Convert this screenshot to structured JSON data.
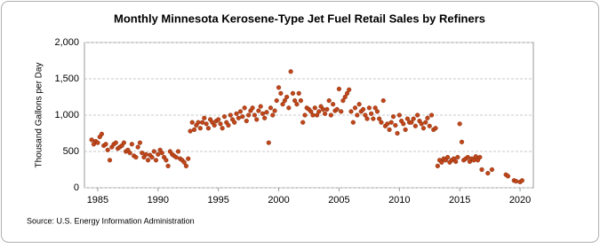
{
  "chart_data": {
    "type": "scatter",
    "title": "Monthly Minnesota Kerosene-Type Jet Fuel Retail Sales by Refiners",
    "y_label": "Thousand Gallons per Day",
    "source": "Source: U.S. Energy Information Administration",
    "color": "#c0461a",
    "grid": true,
    "xlim": [
      1983.9,
      2021.1
    ],
    "xticks": [
      1985,
      1990,
      1995,
      2000,
      2005,
      2010,
      2015,
      2020
    ],
    "ylim": [
      0,
      2000
    ],
    "yticks": [
      0,
      500,
      {
        "value": 1000,
        "label": "1,000"
      },
      {
        "value": 1500,
        "label": "1,500"
      },
      {
        "value": 2000,
        "label": "2,000"
      }
    ],
    "x": [
      1984.5,
      1984.67,
      1984.83,
      1985,
      1985.17,
      1985.33,
      1985.5,
      1985.67,
      1985.83,
      1986,
      1986.17,
      1986.33,
      1986.5,
      1986.67,
      1986.83,
      1987,
      1987.17,
      1987.33,
      1987.5,
      1987.67,
      1987.83,
      1988,
      1988.17,
      1988.33,
      1988.5,
      1988.67,
      1988.83,
      1989,
      1989.17,
      1989.33,
      1989.5,
      1989.67,
      1989.83,
      1990,
      1990.17,
      1990.33,
      1990.5,
      1990.67,
      1990.83,
      1991,
      1991.17,
      1991.33,
      1991.5,
      1991.67,
      1991.83,
      1992,
      1992.17,
      1992.33,
      1992.5,
      1992.67,
      1992.83,
      1993,
      1993.17,
      1993.33,
      1993.5,
      1993.67,
      1993.83,
      1994,
      1994.17,
      1994.33,
      1994.5,
      1994.67,
      1994.83,
      1995,
      1995.17,
      1995.33,
      1995.5,
      1995.67,
      1995.83,
      1996,
      1996.17,
      1996.33,
      1996.5,
      1996.67,
      1996.83,
      1997,
      1997.17,
      1997.33,
      1997.5,
      1997.67,
      1997.83,
      1998,
      1998.17,
      1998.33,
      1998.5,
      1998.67,
      1998.83,
      1999,
      1999.17,
      1999.33,
      1999.5,
      1999.67,
      1999.83,
      2000,
      2000.17,
      2000.33,
      2000.5,
      2000.67,
      2000.83,
      2001,
      2001.17,
      2001.33,
      2001.5,
      2001.67,
      2001.83,
      2002,
      2002.17,
      2002.33,
      2002.5,
      2002.67,
      2002.83,
      2003,
      2003.17,
      2003.33,
      2003.5,
      2003.67,
      2003.83,
      2004,
      2004.17,
      2004.33,
      2004.5,
      2004.67,
      2004.83,
      2005,
      2005.17,
      2005.33,
      2005.5,
      2005.67,
      2005.83,
      2006,
      2006.17,
      2006.33,
      2006.5,
      2006.67,
      2006.83,
      2007,
      2007.17,
      2007.33,
      2007.5,
      2007.67,
      2007.83,
      2008,
      2008.17,
      2008.33,
      2008.5,
      2008.67,
      2008.83,
      2009,
      2009.17,
      2009.33,
      2009.5,
      2009.67,
      2009.83,
      2010,
      2010.17,
      2010.33,
      2010.5,
      2010.67,
      2010.83,
      2011,
      2011.17,
      2011.33,
      2011.5,
      2011.67,
      2011.83,
      2012,
      2012.17,
      2012.33,
      2012.5,
      2012.67,
      2012.83,
      2013,
      2013.17,
      2013.33,
      2013.5,
      2013.67,
      2013.83,
      2014,
      2014.17,
      2014.33,
      2014.5,
      2014.67,
      2014.83,
      2015,
      2015.17,
      2015.33,
      2015.5,
      2015.67,
      2015.83,
      2016,
      2016.17,
      2016.33,
      2016.5,
      2016.67,
      2016.83,
      2017.33,
      2017.67,
      2018.83,
      2019,
      2019.5,
      2019.67,
      2020,
      2020.17
    ],
    "values": [
      660,
      600,
      640,
      620,
      700,
      740,
      580,
      600,
      520,
      380,
      560,
      600,
      620,
      540,
      560,
      580,
      620,
      500,
      520,
      480,
      600,
      440,
      420,
      560,
      620,
      480,
      420,
      460,
      380,
      450,
      420,
      500,
      380,
      460,
      520,
      480,
      420,
      380,
      300,
      500,
      460,
      440,
      420,
      500,
      400,
      380,
      350,
      300,
      400,
      780,
      900,
      800,
      860,
      900,
      820,
      900,
      960,
      880,
      820,
      940,
      900,
      860,
      920,
      940,
      880,
      820,
      980,
      900,
      860,
      1000,
      940,
      900,
      1020,
      960,
      1050,
      980,
      1100,
      920,
      1000,
      1060,
      1100,
      1000,
      940,
      1060,
      1120,
      1020,
      960,
      1040,
      620,
      1100,
      1000,
      1060,
      1200,
      1380,
      1300,
      1150,
      1200,
      1250,
      1100,
      1600,
      1300,
      1200,
      1150,
      1300,
      1200,
      900,
      1000,
      1100,
      1080,
      1050,
      1000,
      1100,
      1000,
      1050,
      1120,
      1080,
      1020,
      1080,
      1200,
      1000,
      1150,
      1060,
      1080,
      1360,
      1050,
      1200,
      1250,
      1300,
      1350,
      1050,
      900,
      1100,
      1000,
      1150,
      1050,
      1080,
      1000,
      950,
      1100,
      1020,
      950,
      1100,
      1050,
      950,
      900,
      1200,
      850,
      880,
      800,
      900,
      980,
      860,
      750,
      1000,
      920,
      880,
      800,
      950,
      900,
      900,
      950,
      850,
      1000,
      920,
      880,
      820,
      900,
      960,
      850,
      1000,
      800,
      820,
      300,
      380,
      350,
      400,
      380,
      420,
      350,
      380,
      400,
      360,
      420,
      880,
      630,
      380,
      400,
      420,
      360,
      400,
      380,
      430,
      380,
      420,
      250,
      200,
      250,
      180,
      160,
      100,
      90,
      80,
      100
    ]
  }
}
